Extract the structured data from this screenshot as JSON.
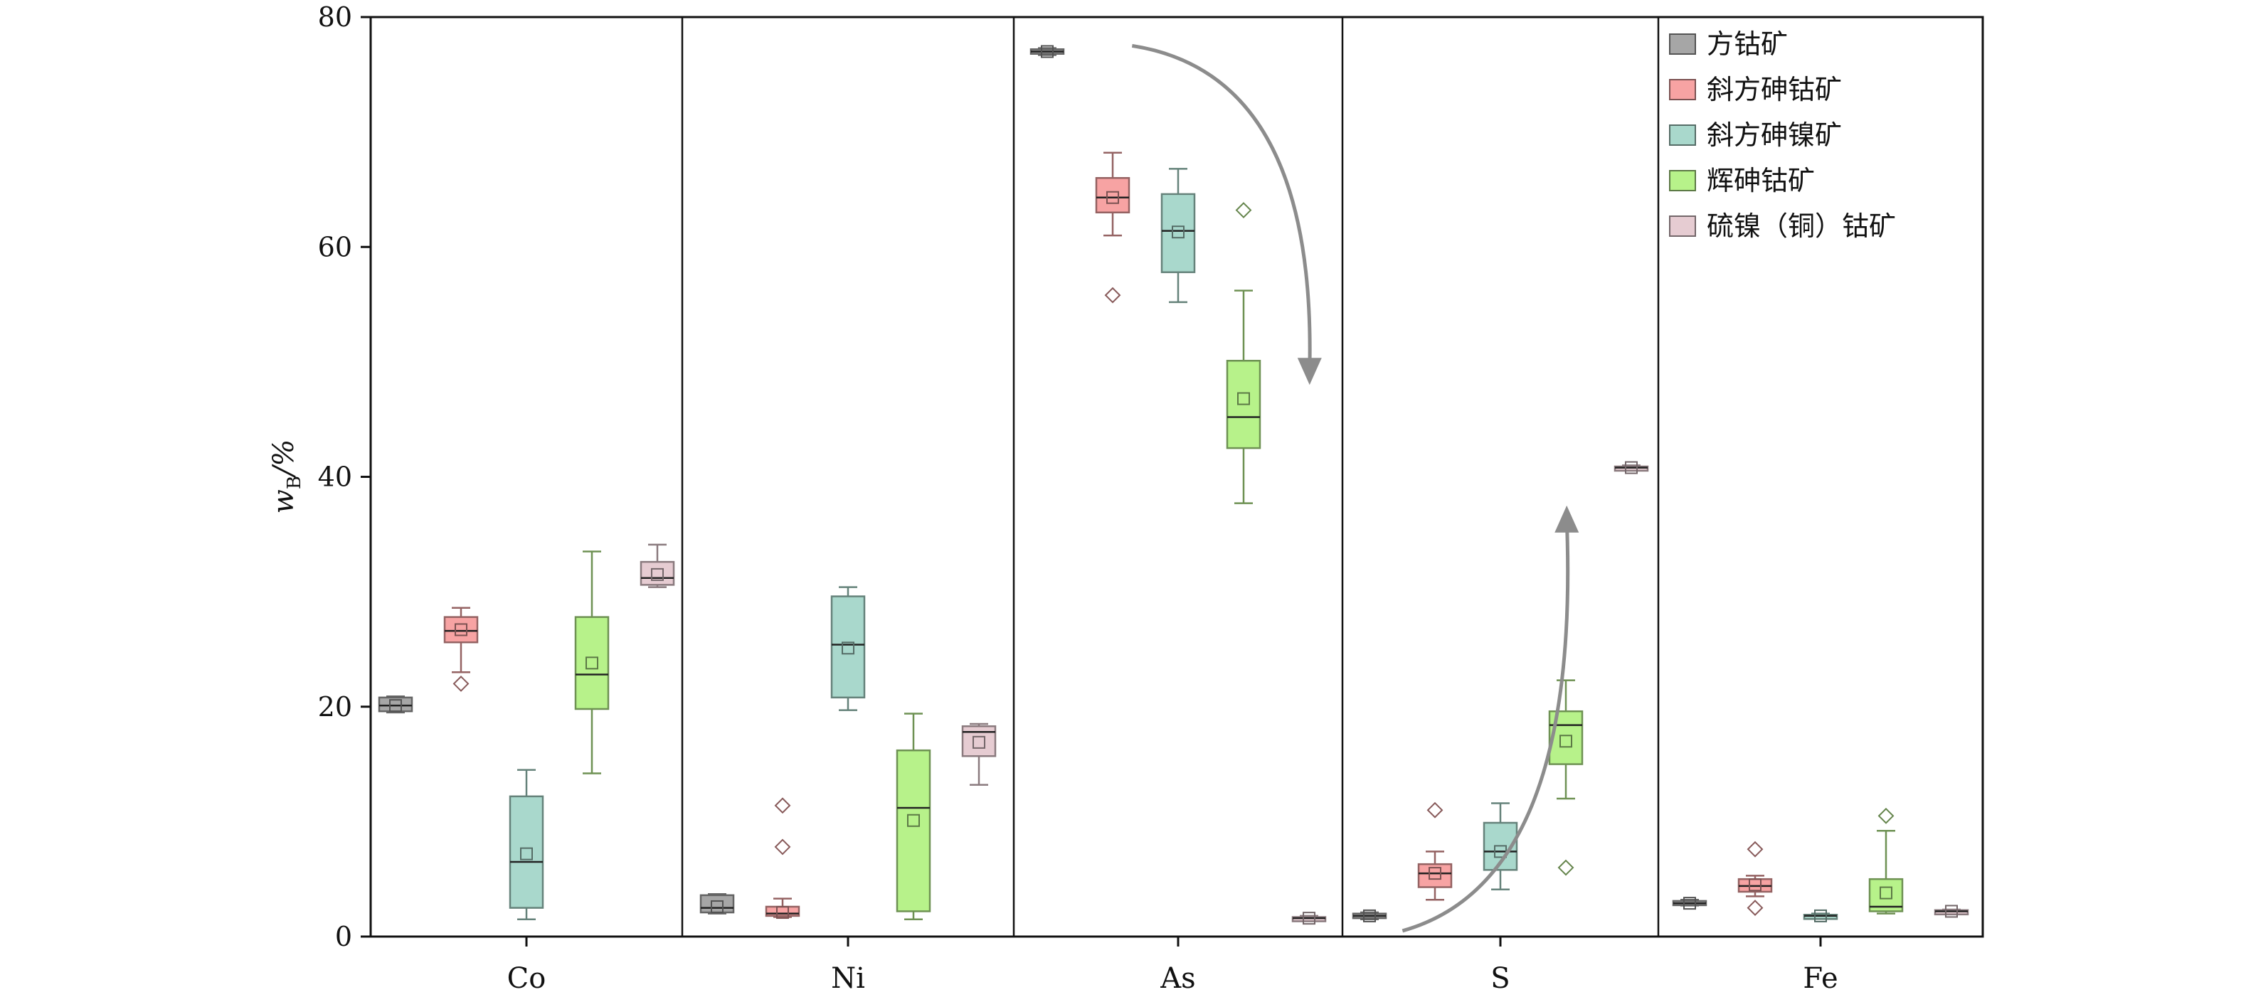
{
  "chart_data": {
    "type": "box",
    "ylabel": "wB/%",
    "ylabel_main": "w",
    "ylabel_sub": "B",
    "ylabel_rest": "/%",
    "ylim": [
      0,
      80
    ],
    "yticks": [
      "0",
      "20",
      "40",
      "60",
      "80"
    ],
    "categories": [
      "Co",
      "Ni",
      "As",
      "S",
      "Fe"
    ],
    "grid": false,
    "legend_position": "top-right",
    "series": [
      {
        "name": "方钴矿",
        "color": "#a6a6a6"
      },
      {
        "name": "斜方砷钴矿",
        "color": "#f7a3a3"
      },
      {
        "name": "斜方砷镍矿",
        "color": "#a9d8cc"
      },
      {
        "name": "辉砷钴矿",
        "color": "#b7f28a"
      },
      {
        "name": "硫镍（铜）钴矿",
        "color": "#e6ccd2"
      }
    ],
    "boxes": [
      {
        "category": "Co",
        "series": "方钴矿",
        "whisker_low": 19.5,
        "q1": 19.6,
        "median": 20.1,
        "q3": 20.8,
        "whisker_high": 20.9,
        "mean": 20.1,
        "outliers": []
      },
      {
        "category": "Co",
        "series": "斜方砷钴矿",
        "whisker_low": 23.0,
        "q1": 25.6,
        "median": 26.6,
        "q3": 27.8,
        "whisker_high": 28.6,
        "mean": 26.7,
        "outliers": [
          22.0
        ]
      },
      {
        "category": "Co",
        "series": "斜方砷镍矿",
        "whisker_low": 1.5,
        "q1": 2.5,
        "median": 6.5,
        "q3": 12.2,
        "whisker_high": 14.5,
        "mean": 7.2,
        "outliers": []
      },
      {
        "category": "Co",
        "series": "辉砷钴矿",
        "whisker_low": 14.2,
        "q1": 19.8,
        "median": 22.8,
        "q3": 27.8,
        "whisker_high": 33.5,
        "mean": 23.8,
        "outliers": []
      },
      {
        "category": "Co",
        "series": "硫镍（铜）钴矿",
        "whisker_low": 30.4,
        "q1": 30.6,
        "median": 31.2,
        "q3": 32.6,
        "whisker_high": 34.1,
        "mean": 31.5,
        "outliers": []
      },
      {
        "category": "Ni",
        "series": "方钴矿",
        "whisker_low": 2.0,
        "q1": 2.1,
        "median": 2.5,
        "q3": 3.6,
        "whisker_high": 3.7,
        "mean": 2.6,
        "outliers": []
      },
      {
        "category": "Ni",
        "series": "斜方砷钴矿",
        "whisker_low": 1.7,
        "q1": 1.8,
        "median": 2.0,
        "q3": 2.6,
        "whisker_high": 3.3,
        "mean": 2.1,
        "outliers": [
          7.8,
          11.4
        ]
      },
      {
        "category": "Ni",
        "series": "斜方砷镍矿",
        "whisker_low": 19.7,
        "q1": 20.8,
        "median": 25.4,
        "q3": 29.6,
        "whisker_high": 30.4,
        "mean": 25.1,
        "outliers": []
      },
      {
        "category": "Ni",
        "series": "辉砷钴矿",
        "whisker_low": 1.5,
        "q1": 2.2,
        "median": 11.2,
        "q3": 16.2,
        "whisker_high": 19.4,
        "mean": 10.1,
        "outliers": []
      },
      {
        "category": "Ni",
        "series": "硫镍（铜）钴矿",
        "whisker_low": 13.2,
        "q1": 15.7,
        "median": 17.8,
        "q3": 18.3,
        "whisker_high": 18.5,
        "mean": 16.9,
        "outliers": []
      },
      {
        "category": "As",
        "series": "方钴矿",
        "whisker_low": 76.7,
        "q1": 76.8,
        "median": 77.0,
        "q3": 77.2,
        "whisker_high": 77.3,
        "mean": 77.0,
        "outliers": []
      },
      {
        "category": "As",
        "series": "斜方砷钴矿",
        "whisker_low": 61.0,
        "q1": 63.0,
        "median": 64.3,
        "q3": 66.0,
        "whisker_high": 68.2,
        "mean": 64.3,
        "outliers": [
          55.8
        ]
      },
      {
        "category": "As",
        "series": "斜方砷镍矿",
        "whisker_low": 55.2,
        "q1": 57.8,
        "median": 61.4,
        "q3": 64.6,
        "whisker_high": 66.8,
        "mean": 61.3,
        "outliers": []
      },
      {
        "category": "As",
        "series": "辉砷钴矿",
        "whisker_low": 37.7,
        "q1": 42.5,
        "median": 45.2,
        "q3": 50.1,
        "whisker_high": 56.2,
        "mean": 46.8,
        "outliers": [
          63.2
        ]
      },
      {
        "category": "As",
        "series": "硫镍（铜）钴矿",
        "whisker_low": 1.4,
        "q1": 1.5,
        "median": 1.6,
        "q3": 1.7,
        "whisker_high": 1.8,
        "mean": 1.6,
        "outliers": []
      },
      {
        "category": "S",
        "series": "方钴矿",
        "whisker_low": 1.5,
        "q1": 1.6,
        "median": 1.8,
        "q3": 2.0,
        "whisker_high": 2.1,
        "mean": 1.8,
        "outliers": []
      },
      {
        "category": "S",
        "series": "斜方砷钴矿",
        "whisker_low": 3.2,
        "q1": 4.3,
        "median": 5.5,
        "q3": 6.3,
        "whisker_high": 7.4,
        "mean": 5.5,
        "outliers": [
          11.0
        ]
      },
      {
        "category": "S",
        "series": "斜方砷镍矿",
        "whisker_low": 4.1,
        "q1": 5.8,
        "median": 7.4,
        "q3": 9.9,
        "whisker_high": 11.6,
        "mean": 7.4,
        "outliers": []
      },
      {
        "category": "S",
        "series": "辉砷钴矿",
        "whisker_low": 12.0,
        "q1": 15.0,
        "median": 18.4,
        "q3": 19.6,
        "whisker_high": 22.3,
        "mean": 17.0,
        "outliers": [
          6.0
        ]
      },
      {
        "category": "S",
        "series": "硫镍（铜）钴矿",
        "whisker_low": 40.6,
        "q1": 40.7,
        "median": 40.8,
        "q3": 40.9,
        "whisker_high": 41.0,
        "mean": 40.8,
        "outliers": []
      },
      {
        "category": "Fe",
        "series": "方钴矿",
        "whisker_low": 2.7,
        "q1": 2.8,
        "median": 2.9,
        "q3": 3.1,
        "whisker_high": 3.2,
        "mean": 2.9,
        "outliers": []
      },
      {
        "category": "Fe",
        "series": "斜方砷钴矿",
        "whisker_low": 3.5,
        "q1": 3.9,
        "median": 4.4,
        "q3": 5.0,
        "whisker_high": 5.3,
        "mean": 4.5,
        "outliers": [
          2.5,
          7.6
        ]
      },
      {
        "category": "Fe",
        "series": "斜方砷镍矿",
        "whisker_low": 1.6,
        "q1": 1.7,
        "median": 1.8,
        "q3": 1.9,
        "whisker_high": 2.0,
        "mean": 1.8,
        "outliers": []
      },
      {
        "category": "Fe",
        "series": "辉砷钴矿",
        "whisker_low": 2.0,
        "q1": 2.2,
        "median": 2.6,
        "q3": 5.0,
        "whisker_high": 9.2,
        "mean": 3.8,
        "outliers": [
          10.5
        ]
      },
      {
        "category": "Fe",
        "series": "硫镍（铜）钴矿",
        "whisker_low": 2.1,
        "q1": 2.15,
        "median": 2.2,
        "q3": 2.3,
        "whisker_high": 2.35,
        "mean": 2.2,
        "outliers": []
      }
    ],
    "annotations": [
      {
        "type": "arrow",
        "category": "As",
        "direction": "down",
        "from_value": 77.5,
        "to_value": 48.0
      },
      {
        "type": "arrow",
        "category": "S",
        "direction": "up",
        "from_value": 0.5,
        "to_value": 37.5
      }
    ]
  }
}
